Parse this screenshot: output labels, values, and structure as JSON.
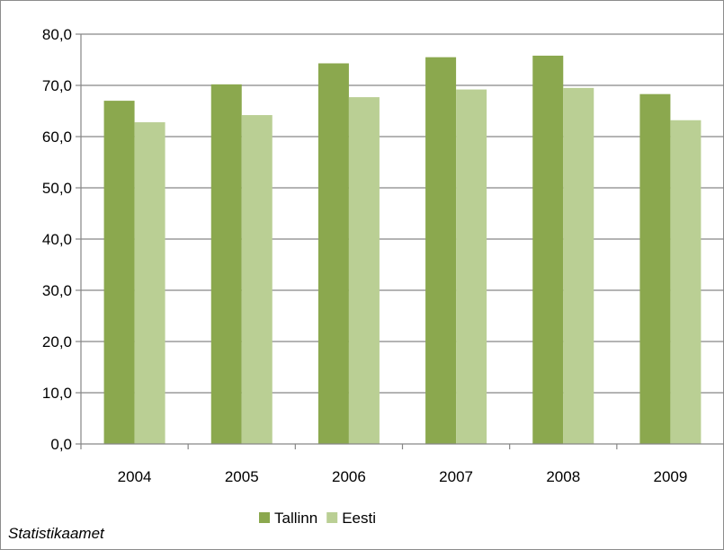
{
  "chart_data": {
    "type": "bar",
    "categories": [
      "2004",
      "2005",
      "2006",
      "2007",
      "2008",
      "2009"
    ],
    "series": [
      {
        "name": "Tallinn",
        "values": [
          67.0,
          70.2,
          74.3,
          75.5,
          75.8,
          68.3
        ],
        "color": "#8ba84e"
      },
      {
        "name": "Eesti",
        "values": [
          62.8,
          64.2,
          67.7,
          69.2,
          69.5,
          63.2
        ],
        "color": "#bacf94"
      }
    ],
    "ylim": [
      0,
      80
    ],
    "yticks": [
      "0,0",
      "10,0",
      "20,0",
      "30,0",
      "40,0",
      "50,0",
      "60,0",
      "70,0",
      "80,0"
    ],
    "grid": true,
    "legend_position": "bottom"
  },
  "source": "Statistikaamet"
}
